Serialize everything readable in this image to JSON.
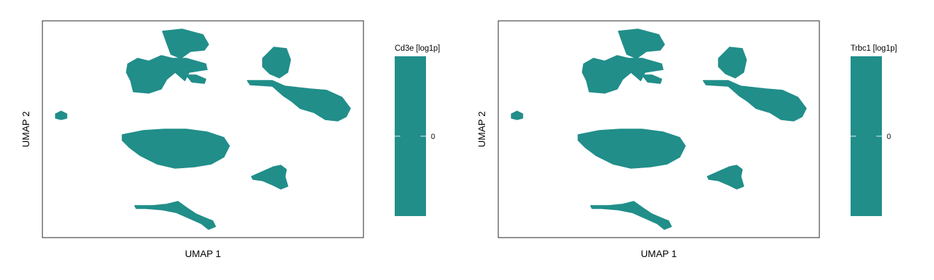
{
  "chart_data": [
    {
      "type": "heatmap",
      "subtype": "hexbin-umap",
      "xlabel": "UMAP 1",
      "ylabel": "UMAP 2",
      "colorbar": {
        "title": "Cd3e [log1p]",
        "ticks": [
          "0"
        ],
        "color": "#218e8a"
      },
      "fill_color": "#218e8a",
      "grid": false
    },
    {
      "type": "heatmap",
      "subtype": "hexbin-umap",
      "xlabel": "UMAP 1",
      "ylabel": "UMAP 2",
      "colorbar": {
        "title": "Trbc1 [log1p]",
        "ticks": [
          "0"
        ],
        "color": "#218e8a"
      },
      "fill_color": "#218e8a",
      "grid": false
    }
  ]
}
